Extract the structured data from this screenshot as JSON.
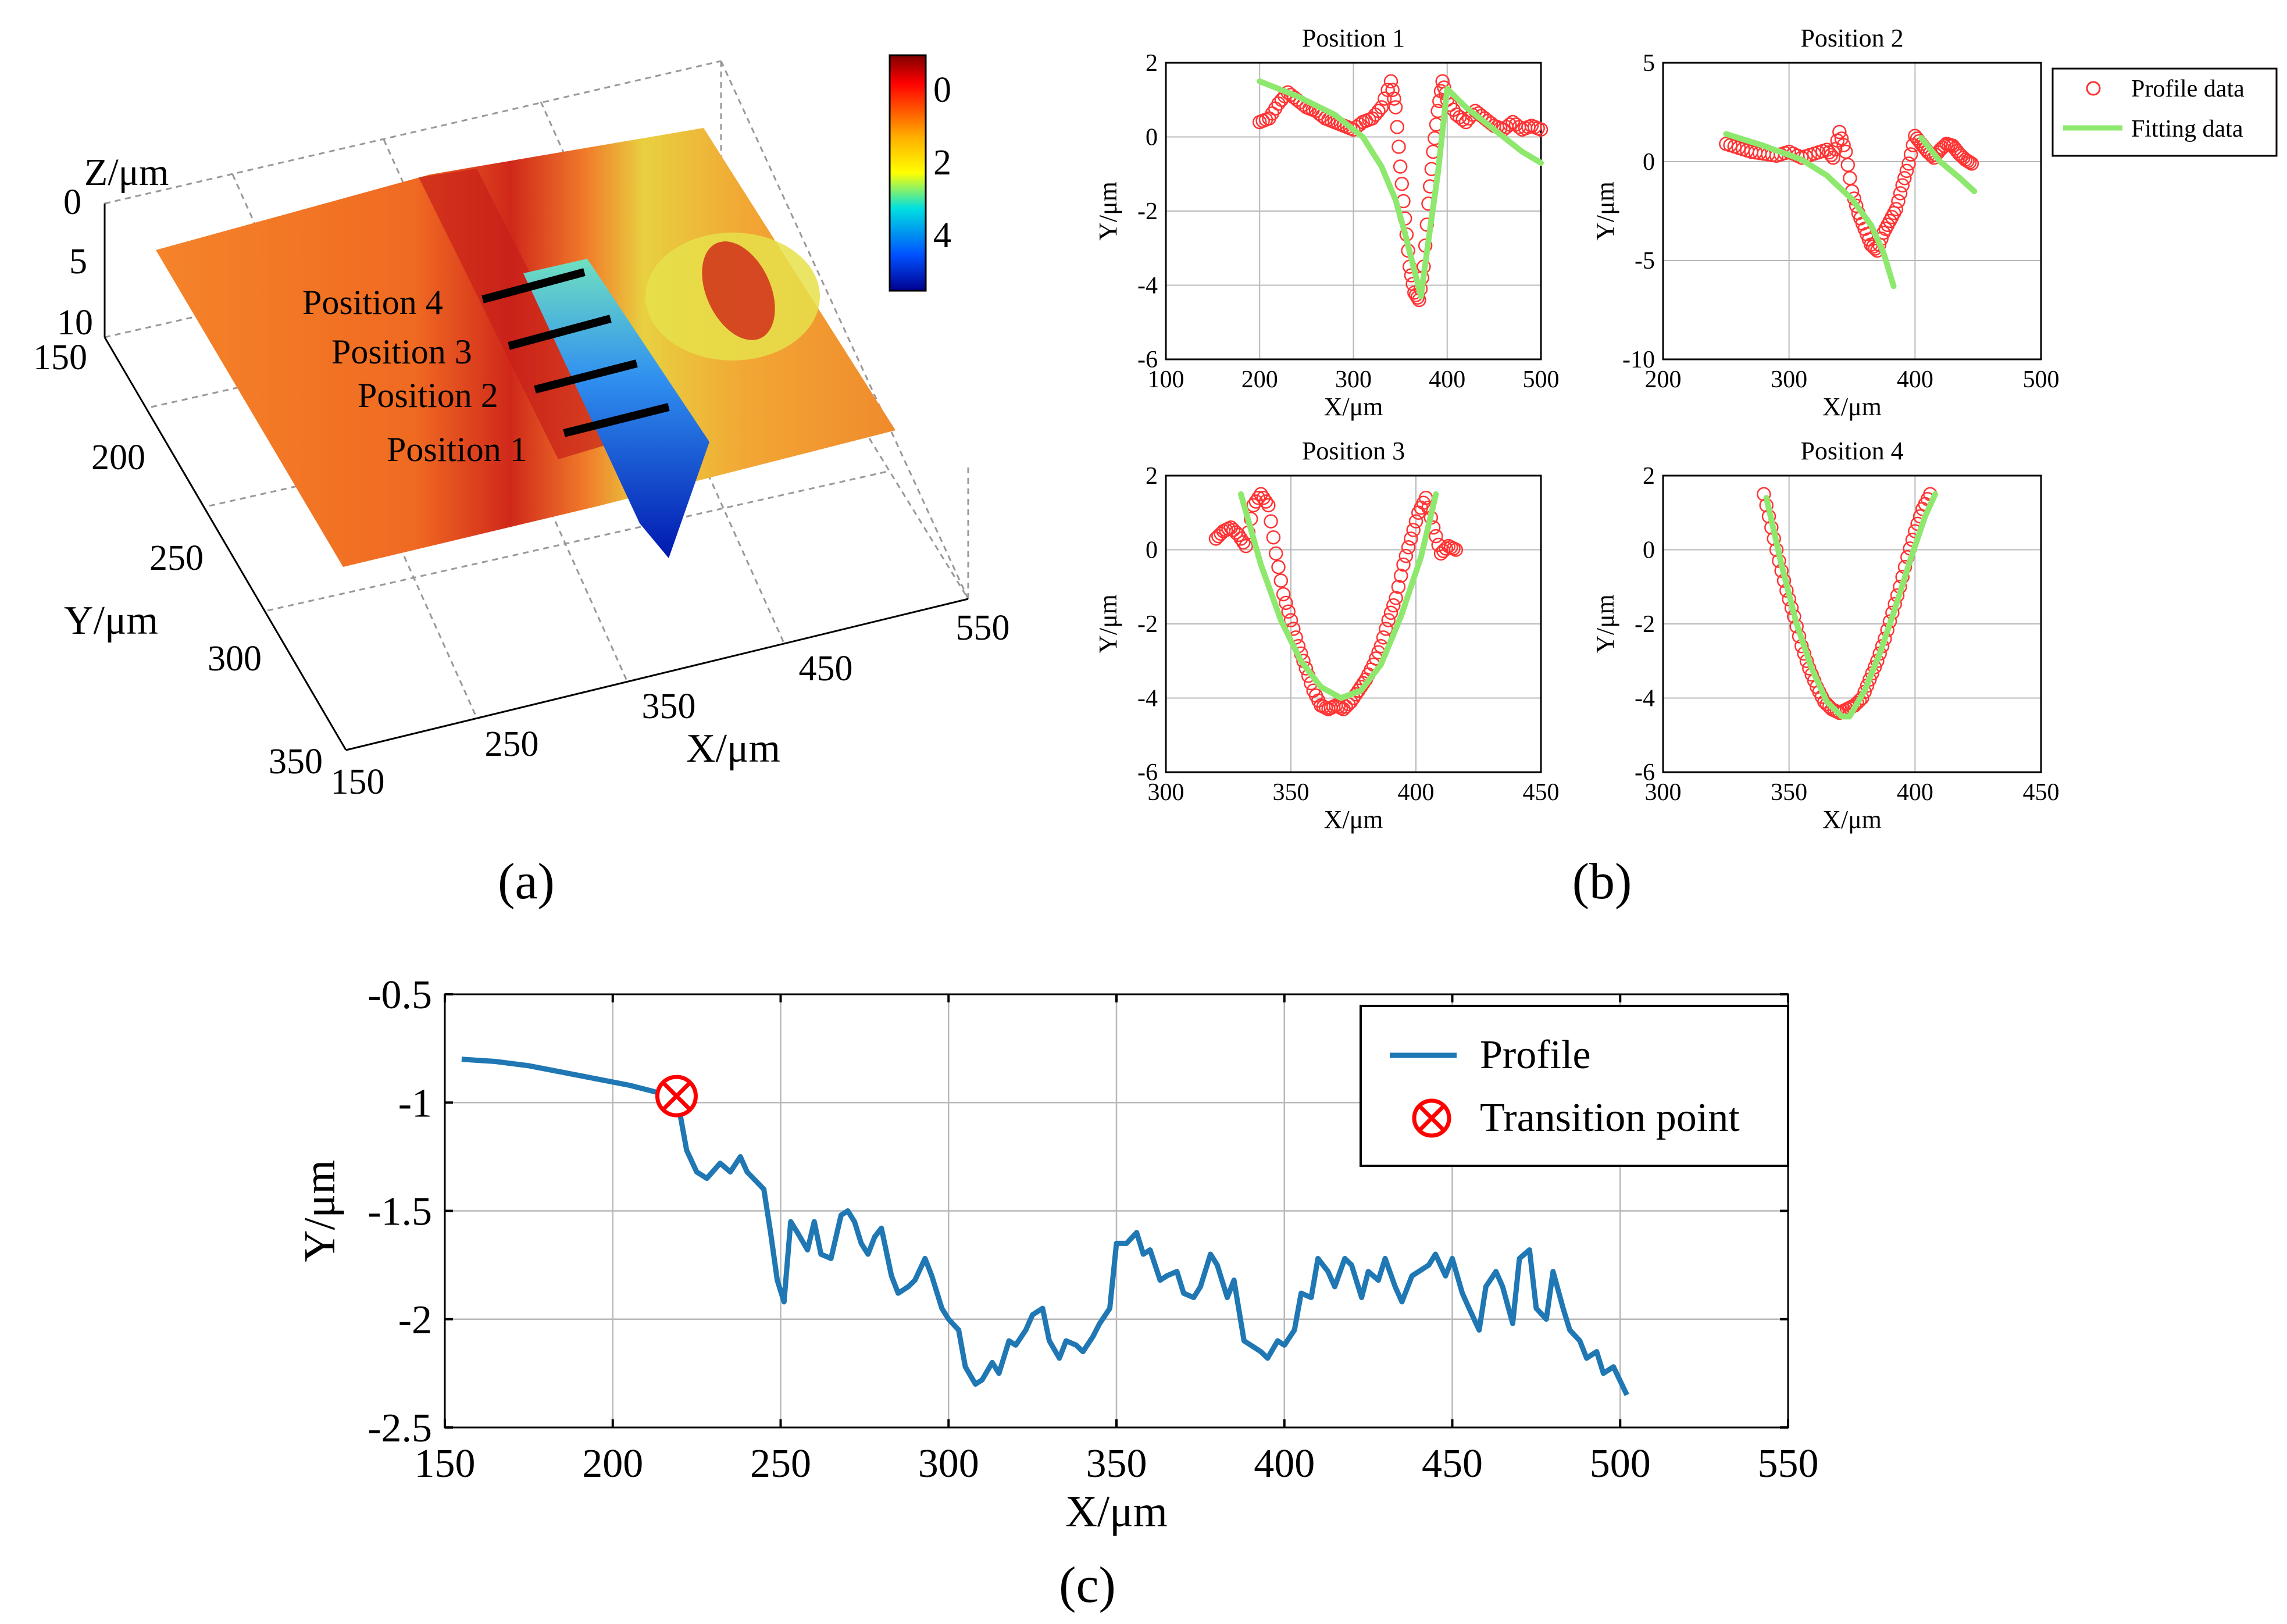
{
  "panel_labels": {
    "a": "(a)",
    "b": "(b)",
    "c": "(c)"
  },
  "colors": {
    "profile_marker": "#ff3333",
    "fitting_line": "#8ee86e",
    "profile_line": "#1f77b4",
    "transition_marker": "#ff0000",
    "grid": "#b8b8b8",
    "surface_low": "#00008f",
    "surface_high": "#800000"
  },
  "chart_data": [
    {
      "id": "a",
      "type": "heatmap",
      "title": "",
      "xlabel": "X/μm",
      "ylabel": "Y/μm",
      "zlabel": "Z/μm",
      "x_ticks": [
        "150",
        "250",
        "350",
        "450",
        "550"
      ],
      "y_ticks": [
        "150",
        "200",
        "250",
        "300",
        "350"
      ],
      "z_ticks": [
        "0",
        "5",
        "10"
      ],
      "colorbar_ticks": [
        "0",
        "2",
        "4"
      ],
      "colorbar_range": [
        0,
        5
      ],
      "annotations": [
        "Position 4",
        "Position 3",
        "Position 2",
        "Position 1"
      ],
      "groove": {
        "center_x": 360,
        "max_depth": 5
      }
    },
    {
      "id": "b1",
      "type": "scatter",
      "title": "Position 1",
      "xlabel": "X/μm",
      "ylabel": "Y/μm",
      "xlim": [
        100,
        500
      ],
      "ylim": [
        -6,
        2
      ],
      "xticks": [
        "100",
        "200",
        "300",
        "400",
        "500"
      ],
      "yticks": [
        "2",
        "0",
        "-2",
        "-4",
        "-6"
      ],
      "profile_x": [
        200,
        210,
        220,
        230,
        240,
        250,
        260,
        270,
        280,
        290,
        300,
        310,
        320,
        330,
        340,
        345,
        350,
        355,
        360,
        365,
        370,
        375,
        380,
        385,
        390,
        395,
        400,
        410,
        420,
        430,
        440,
        450,
        460,
        470,
        480,
        490,
        500
      ],
      "profile_y": [
        0.4,
        0.5,
        0.9,
        1.2,
        1.0,
        0.8,
        0.7,
        0.5,
        0.4,
        0.3,
        0.2,
        0.4,
        0.5,
        0.8,
        1.5,
        0.8,
        -0.8,
        -2.2,
        -3.5,
        -4.2,
        -4.4,
        -3.5,
        -1.8,
        -0.4,
        0.7,
        1.5,
        1.0,
        0.6,
        0.4,
        0.7,
        0.5,
        0.3,
        0.2,
        0.4,
        0.2,
        0.3,
        0.2
      ],
      "fit_segments": [
        {
          "x": [
            200,
            240,
            280,
            310,
            330,
            345,
            355,
            365,
            372
          ],
          "y": [
            1.5,
            1.1,
            0.6,
            0.0,
            -0.8,
            -1.7,
            -2.6,
            -3.6,
            -4.3
          ]
        },
        {
          "x": [
            372,
            380,
            390,
            400,
            420,
            440,
            460,
            480,
            500
          ],
          "y": [
            -4.3,
            -2.8,
            -1.0,
            1.3,
            0.8,
            0.4,
            0.0,
            -0.4,
            -0.7
          ]
        }
      ],
      "legend": [
        "Profile data",
        "Fitting data"
      ]
    },
    {
      "id": "b2",
      "type": "scatter",
      "title": "Position 2",
      "xlabel": "X/μm",
      "ylabel": "Y/μm",
      "xlim": [
        200,
        500
      ],
      "ylim": [
        -10,
        5
      ],
      "xticks": [
        "200",
        "300",
        "400",
        "500"
      ],
      "yticks": [
        "5",
        "0",
        "-5",
        "-10"
      ],
      "profile_x": [
        250,
        260,
        270,
        280,
        290,
        300,
        310,
        320,
        330,
        335,
        340,
        345,
        350,
        355,
        360,
        365,
        370,
        375,
        380,
        385,
        390,
        395,
        400,
        405,
        410,
        415,
        420,
        425,
        430,
        435,
        440,
        445
      ],
      "profile_y": [
        0.9,
        0.7,
        0.5,
        0.4,
        0.3,
        0.5,
        0.2,
        0.4,
        0.6,
        0.2,
        1.5,
        0.5,
        -1.5,
        -2.6,
        -3.4,
        -4.2,
        -4.5,
        -3.6,
        -3.0,
        -2.4,
        -1.2,
        -0.1,
        1.3,
        0.9,
        0.5,
        0.2,
        0.6,
        0.9,
        0.8,
        0.4,
        0.1,
        -0.1
      ],
      "fit_segments": [
        {
          "x": [
            250,
            280,
            310,
            330,
            350,
            365,
            375,
            383
          ],
          "y": [
            1.4,
            0.8,
            0.1,
            -0.7,
            -1.9,
            -3.2,
            -4.6,
            -6.3
          ]
        },
        {
          "x": [
            405,
            420,
            435,
            447
          ],
          "y": [
            1.2,
            0.0,
            -0.8,
            -1.5
          ]
        }
      ]
    },
    {
      "id": "b3",
      "type": "scatter",
      "title": "Position 3",
      "xlabel": "X/μm",
      "ylabel": "Y/μm",
      "xlim": [
        300,
        450
      ],
      "ylim": [
        -6,
        2
      ],
      "xticks": [
        "300",
        "350",
        "400",
        "450"
      ],
      "yticks": [
        "2",
        "0",
        "-2",
        "-4",
        "-6"
      ],
      "profile_x": [
        320,
        323,
        326,
        329,
        332,
        335,
        338,
        341,
        344,
        347,
        350,
        353,
        356,
        359,
        362,
        365,
        368,
        371,
        374,
        377,
        380,
        383,
        386,
        389,
        392,
        395,
        398,
        401,
        404,
        407,
        410,
        413,
        416
      ],
      "profile_y": [
        0.3,
        0.5,
        0.6,
        0.4,
        0.1,
        1.2,
        1.5,
        1.2,
        -0.1,
        -1.2,
        -1.9,
        -2.6,
        -3.2,
        -3.8,
        -4.2,
        -4.3,
        -4.2,
        -4.3,
        -4.1,
        -3.8,
        -3.5,
        -3.1,
        -2.6,
        -1.9,
        -1.3,
        -0.4,
        0.3,
        1.0,
        1.4,
        0.6,
        -0.1,
        0.1,
        0.0
      ],
      "fit_segments": [
        {
          "x": [
            330,
            338,
            346,
            354,
            362,
            370,
            378,
            386,
            394,
            402,
            408
          ],
          "y": [
            1.5,
            -0.4,
            -1.9,
            -3.0,
            -3.7,
            -4.0,
            -3.8,
            -3.1,
            -1.8,
            -0.2,
            1.5
          ]
        }
      ]
    },
    {
      "id": "b4",
      "type": "scatter",
      "title": "Position 4",
      "xlabel": "X/μm",
      "ylabel": "Y/μm",
      "xlim": [
        300,
        450
      ],
      "ylim": [
        -6,
        2
      ],
      "xticks": [
        "300",
        "350",
        "400",
        "450"
      ],
      "yticks": [
        "2",
        "0",
        "-2",
        "-4",
        "-6"
      ],
      "profile_x": [
        340,
        343,
        346,
        349,
        352,
        355,
        358,
        361,
        364,
        367,
        370,
        373,
        376,
        379,
        382,
        385,
        388,
        391,
        394,
        397,
        400,
        403,
        406
      ],
      "profile_y": [
        1.5,
        0.6,
        -0.3,
        -1.1,
        -1.8,
        -2.6,
        -3.2,
        -3.7,
        -4.1,
        -4.3,
        -4.4,
        -4.3,
        -4.2,
        -4.0,
        -3.5,
        -3.0,
        -2.4,
        -1.7,
        -1.0,
        -0.2,
        0.5,
        1.1,
        1.5
      ],
      "fit_segments": [
        {
          "x": [
            341,
            347,
            353,
            359,
            365,
            371,
            374,
            380,
            386,
            392,
            398,
            404,
            408
          ],
          "y": [
            1.4,
            -0.4,
            -2.0,
            -3.2,
            -4.1,
            -4.5,
            -4.5,
            -3.8,
            -2.8,
            -1.6,
            -0.3,
            0.9,
            1.5
          ]
        }
      ]
    },
    {
      "id": "c",
      "type": "line",
      "title": "",
      "xlabel": "X/μm",
      "ylabel": "Y/μm",
      "xlim": [
        150,
        550
      ],
      "ylim": [
        -2.5,
        -0.5
      ],
      "xticks": [
        "150",
        "200",
        "250",
        "300",
        "350",
        "400",
        "450",
        "500",
        "550"
      ],
      "yticks": [
        "-0.5",
        "-1",
        "-1.5",
        "-2",
        "-2.5"
      ],
      "series": [
        {
          "name": "Profile",
          "x": [
            155,
            165,
            175,
            185,
            195,
            205,
            215,
            219,
            220,
            222,
            225,
            228,
            232,
            235,
            238,
            240,
            245,
            247,
            249,
            251,
            253,
            255,
            258,
            260,
            262,
            265,
            268,
            270,
            272,
            274,
            276,
            278,
            280,
            283,
            285,
            288,
            290,
            293,
            295,
            298,
            300,
            303,
            305,
            308,
            310,
            313,
            315,
            318,
            320,
            323,
            325,
            328,
            330,
            333,
            335,
            338,
            340,
            343,
            345,
            348,
            350,
            353,
            356,
            358,
            360,
            363,
            365,
            368,
            370,
            373,
            375,
            378,
            380,
            383,
            385,
            388,
            390,
            393,
            395,
            398,
            400,
            403,
            405,
            408,
            410,
            413,
            415,
            418,
            420,
            423,
            425,
            428,
            430,
            433,
            435,
            438,
            440,
            443,
            445,
            448,
            450,
            453,
            455,
            458,
            460,
            463,
            465,
            468,
            470,
            473,
            475,
            478,
            480,
            483,
            485,
            488,
            490,
            493,
            495,
            498,
            502
          ],
          "y": [
            -0.8,
            -0.81,
            -0.83,
            -0.86,
            -0.89,
            -0.92,
            -0.96,
            -0.97,
            -1.05,
            -1.22,
            -1.32,
            -1.35,
            -1.28,
            -1.32,
            -1.25,
            -1.32,
            -1.4,
            -1.6,
            -1.82,
            -1.92,
            -1.55,
            -1.6,
            -1.68,
            -1.55,
            -1.7,
            -1.72,
            -1.52,
            -1.5,
            -1.55,
            -1.65,
            -1.7,
            -1.62,
            -1.58,
            -1.8,
            -1.88,
            -1.85,
            -1.82,
            -1.72,
            -1.8,
            -1.95,
            -2.0,
            -2.05,
            -2.22,
            -2.3,
            -2.28,
            -2.2,
            -2.25,
            -2.1,
            -2.12,
            -2.05,
            -1.98,
            -1.95,
            -2.1,
            -2.18,
            -2.1,
            -2.12,
            -2.15,
            -2.08,
            -2.02,
            -1.95,
            -1.65,
            -1.65,
            -1.6,
            -1.7,
            -1.68,
            -1.82,
            -1.8,
            -1.78,
            -1.88,
            -1.9,
            -1.85,
            -1.7,
            -1.75,
            -1.9,
            -1.82,
            -2.1,
            -2.12,
            -2.15,
            -2.18,
            -2.1,
            -2.12,
            -2.05,
            -1.88,
            -1.9,
            -1.72,
            -1.78,
            -1.85,
            -1.72,
            -1.75,
            -1.9,
            -1.78,
            -1.82,
            -1.72,
            -1.85,
            -1.92,
            -1.8,
            -1.78,
            -1.75,
            -1.7,
            -1.8,
            -1.72,
            -1.88,
            -1.95,
            -2.05,
            -1.85,
            -1.78,
            -1.85,
            -2.02,
            -1.72,
            -1.68,
            -1.95,
            -2.0,
            -1.78,
            -1.95,
            -2.05,
            -2.1,
            -2.18,
            -2.15,
            -2.25,
            -2.22,
            -2.35
          ]
        }
      ],
      "transition_point": {
        "x": 219,
        "y": -0.97
      },
      "legend": [
        "Profile",
        "Transition point"
      ]
    }
  ]
}
